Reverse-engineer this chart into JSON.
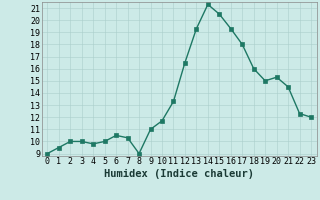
{
  "x": [
    0,
    1,
    2,
    3,
    4,
    5,
    6,
    7,
    8,
    9,
    10,
    11,
    12,
    13,
    14,
    15,
    16,
    17,
    18,
    19,
    20,
    21,
    22,
    23
  ],
  "y": [
    9.0,
    9.5,
    10.0,
    10.0,
    9.8,
    10.0,
    10.5,
    10.3,
    9.0,
    11.0,
    11.7,
    13.3,
    16.5,
    19.3,
    21.3,
    20.5,
    19.3,
    18.0,
    16.0,
    15.0,
    15.3,
    14.5,
    12.3,
    12.0
  ],
  "xlabel": "Humidex (Indice chaleur)",
  "ylim_min": 9.0,
  "ylim_max": 21.5,
  "xlim_min": -0.5,
  "xlim_max": 23.5,
  "yticks": [
    9,
    10,
    11,
    12,
    13,
    14,
    15,
    16,
    17,
    18,
    19,
    20,
    21
  ],
  "xticks": [
    0,
    1,
    2,
    3,
    4,
    5,
    6,
    7,
    8,
    9,
    10,
    11,
    12,
    13,
    14,
    15,
    16,
    17,
    18,
    19,
    20,
    21,
    22,
    23
  ],
  "line_color": "#1e7864",
  "marker_color": "#1e7864",
  "bg_color": "#cceae7",
  "grid_color": "#aacfcc",
  "plot_bg": "#cceae7",
  "xlabel_fontsize": 7.5,
  "tick_fontsize": 6.0,
  "marker_size": 2.5,
  "line_width": 1.0,
  "spine_color": "#888888",
  "grid_linewidth": 0.4
}
